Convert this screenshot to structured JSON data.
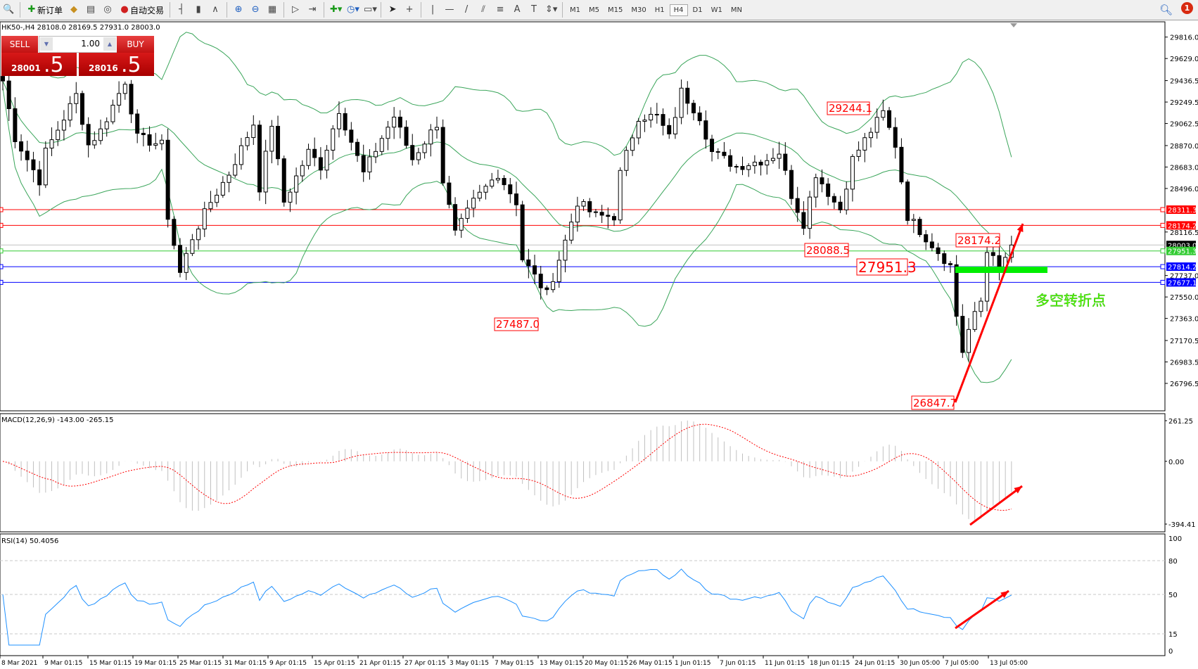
{
  "toolbar": {
    "items": [
      {
        "icon": "zoom-icon",
        "label": ""
      },
      {
        "icon": "new-order-icon",
        "label": "新订单"
      },
      {
        "icon": "metaeditor-icon",
        "label": ""
      },
      {
        "icon": "market-watch-icon",
        "label": ""
      },
      {
        "icon": "signal-icon",
        "label": ""
      },
      {
        "icon": "auto-trading-icon",
        "label": "自动交易"
      },
      {
        "icon": "bar-chart-icon",
        "label": ""
      },
      {
        "icon": "candlestick-icon",
        "label": ""
      },
      {
        "icon": "line-chart-icon",
        "label": ""
      },
      {
        "icon": "zoom-in-icon",
        "label": ""
      },
      {
        "icon": "zoom-out-icon",
        "label": ""
      },
      {
        "icon": "tile-windows-icon",
        "label": ""
      },
      {
        "icon": "chart-shift-icon",
        "label": ""
      },
      {
        "icon": "autoscroll-icon",
        "label": ""
      },
      {
        "icon": "indicators-icon",
        "label": ""
      },
      {
        "icon": "periods-icon",
        "label": ""
      },
      {
        "icon": "templates-icon",
        "label": ""
      },
      {
        "icon": "cursor-icon",
        "label": ""
      },
      {
        "icon": "crosshair-icon",
        "label": ""
      },
      {
        "icon": "vertical-line-icon",
        "label": ""
      },
      {
        "icon": "horizontal-line-icon",
        "label": ""
      },
      {
        "icon": "trendline-icon",
        "label": ""
      },
      {
        "icon": "equidistant-channel-icon",
        "label": ""
      },
      {
        "icon": "fibonacci-icon",
        "label": ""
      },
      {
        "icon": "text-icon",
        "label": "A"
      },
      {
        "icon": "text-label-icon",
        "label": ""
      },
      {
        "icon": "arrows-icon",
        "label": ""
      }
    ],
    "timeframes": [
      "M1",
      "M5",
      "M15",
      "M30",
      "H1",
      "H4",
      "D1",
      "W1",
      "MN"
    ],
    "active_timeframe": "H4",
    "notification_count": "1"
  },
  "chart_header": "HK50-,H4  28108.0 28169.5 27931.0 28003.0",
  "one_click": {
    "sell_label": "SELL",
    "buy_label": "BUY",
    "lots": "1.00",
    "sell_big": "28001",
    "sell_small": ".5",
    "buy_big": "28016",
    "buy_small": ".5"
  },
  "chart_data": {
    "type": "candlestick",
    "symbol": "HK50-",
    "timeframe": "H4",
    "price_ylim": [
      26796.5,
      29816.0
    ],
    "price_ticks": [
      "29816.0",
      "29629.0",
      "29436.5",
      "29249.5",
      "29062.5",
      "28870.0",
      "28683.0",
      "28496.0",
      "28116.5",
      "27737.0",
      "27550.0",
      "27363.0",
      "27170.5",
      "26983.5",
      "26796.5"
    ],
    "price_path": [
      [
        0,
        29434
      ],
      [
        2,
        28938
      ],
      [
        6,
        28565
      ],
      [
        7,
        28814
      ],
      [
        12,
        29310
      ],
      [
        14,
        28876
      ],
      [
        16,
        29000
      ],
      [
        20,
        29434
      ],
      [
        22,
        28938
      ],
      [
        26,
        28876
      ],
      [
        27,
        28255
      ],
      [
        29,
        27759
      ],
      [
        31,
        28069
      ],
      [
        34,
        28379
      ],
      [
        37,
        28627
      ],
      [
        41,
        29062
      ],
      [
        42,
        28503
      ],
      [
        44,
        29062
      ],
      [
        46,
        28379
      ],
      [
        50,
        28814
      ],
      [
        52,
        28689
      ],
      [
        55,
        29186
      ],
      [
        59,
        28627
      ],
      [
        62,
        28938
      ],
      [
        64,
        29124
      ],
      [
        67,
        28752
      ],
      [
        71,
        29062
      ],
      [
        72,
        28565
      ],
      [
        74,
        28100
      ],
      [
        77,
        28379
      ],
      [
        81,
        28627
      ],
      [
        84,
        28379
      ],
      [
        85,
        27883
      ],
      [
        89,
        27573
      ],
      [
        92,
        28038
      ],
      [
        94,
        28379
      ],
      [
        97,
        28255
      ],
      [
        100,
        28255
      ],
      [
        101,
        28627
      ],
      [
        104,
        29124
      ],
      [
        107,
        29124
      ],
      [
        109,
        28938
      ],
      [
        111,
        29341
      ],
      [
        114,
        29124
      ],
      [
        116,
        28814
      ],
      [
        120,
        28689
      ],
      [
        125,
        28752
      ],
      [
        127,
        28814
      ],
      [
        129,
        28441
      ],
      [
        131,
        28193
      ],
      [
        133,
        28627
      ],
      [
        136,
        28379
      ],
      [
        137,
        28317
      ],
      [
        139,
        28752
      ],
      [
        142,
        29000
      ],
      [
        144,
        29155
      ],
      [
        146,
        28876
      ],
      [
        148,
        28255
      ],
      [
        152,
        28007
      ],
      [
        155,
        27822
      ],
      [
        156,
        27387
      ],
      [
        157,
        27077
      ],
      [
        158,
        27263
      ],
      [
        160,
        27511
      ],
      [
        161,
        27945
      ],
      [
        162,
        27945
      ],
      [
        163,
        27759
      ],
      [
        165,
        28003
      ]
    ],
    "time_labels": [
      "8 Mar 2021",
      "9 Mar 01:15",
      "15 Mar 01:15",
      "19 Mar 01:15",
      "25 Mar 01:15",
      "31 Mar 01:15",
      "9 Apr 01:15",
      "15 Apr 01:15",
      "21 Apr 01:15",
      "27 Apr 01:15",
      "3 May 01:15",
      "7 May 01:15",
      "13 May 01:15",
      "20 May 01:15",
      "26 May 01:15",
      "1 Jun 01:15",
      "7 Jun 01:15",
      "11 Jun 01:15",
      "18 Jun 01:15",
      "24 Jun 01:15",
      "30 Jun 05:00",
      "7 Jul 05:00",
      "13 Jul 05:00"
    ],
    "levels": [
      {
        "price": "28311.3",
        "color": "#ff0000"
      },
      {
        "price": "28174.2",
        "color": "#ff0000"
      },
      {
        "price": "28003.0",
        "color": "#000000",
        "line": "#c0c0c0"
      },
      {
        "price": "27951.3",
        "color": "#33cc33"
      },
      {
        "price": "27814.2",
        "color": "#0000ff"
      },
      {
        "price": "27677.1",
        "color": "#0000ff"
      }
    ],
    "price_annotations": [
      "29244.1",
      "28088.5",
      "27951.3",
      "28174.2",
      "27487.0",
      "26847.7"
    ],
    "annotation_text": "多空转折点",
    "bollinger_color": "#3aa55a",
    "macd": {
      "label": "MACD(12,26,9) -143.00 -265.15",
      "ylim": [
        -394.41,
        261.25
      ],
      "ticks": [
        "261.25",
        "0.00",
        "-394.41"
      ],
      "histogram_color": "#c0c0c0",
      "signal_color": "#ff0000"
    },
    "rsi": {
      "label": "RSI(14) 50.4056",
      "ylim": [
        0,
        100
      ],
      "levels": [
        "80",
        "50",
        "15"
      ],
      "ticks": [
        "100",
        "80",
        "50",
        "15",
        "0"
      ],
      "color": "#1e90ff"
    }
  }
}
